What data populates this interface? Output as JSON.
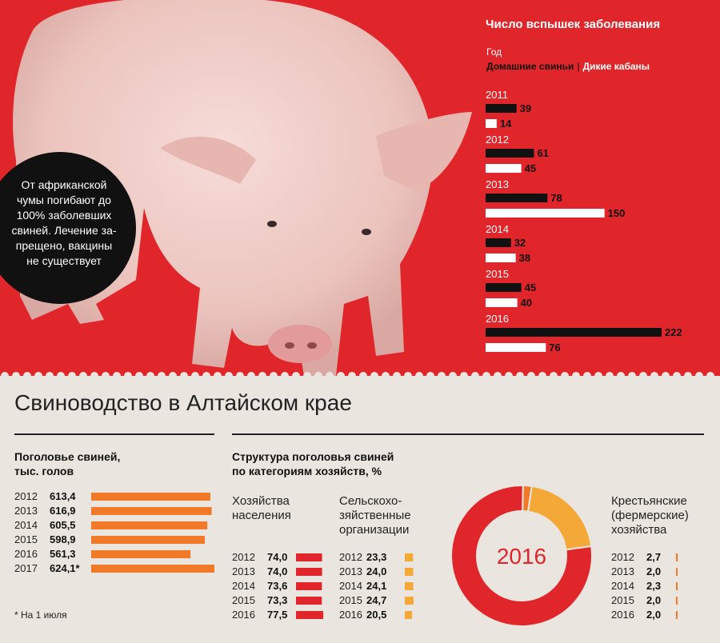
{
  "colors": {
    "red": "#e0262b",
    "black": "#111111",
    "white": "#ffffff",
    "orange": "#f07a28",
    "light_orange": "#f4a838",
    "cream": "#eae6df"
  },
  "callout": {
    "text": "От африканской\nчумы погибают до\n100% заболевших\nсвиней. Лечение за-\nпрещено, вакцины\nне существует"
  },
  "outbreaks": {
    "title": "Число вспышек заболевания",
    "year_label": "Год",
    "legend_domestic": "Домашние свиньи",
    "legend_separator": "|",
    "legend_wild": "Дикие кабаны"
  },
  "main_title": "Свиноводство в Алтайском крае",
  "herd": {
    "title": "Поголовье свиней,\nтыс. голов",
    "note": "* На 1 июля"
  },
  "structure": {
    "title": "Структура поголовья свиней\nпо категориям хозяйств, %",
    "cat1_label": "Хозяйства\nнаселения",
    "cat2_label": "Сельскохо-\nзяйственные\nорганизации",
    "cat3_label": "Крестьянские\n(фермерские)\nхозяйства",
    "donut_label": "2016"
  },
  "chart_data": [
    {
      "id": "outbreaks",
      "type": "bar",
      "title": "Число вспышек заболевания",
      "categories": [
        "2011",
        "2012",
        "2013",
        "2014",
        "2015",
        "2016"
      ],
      "series": [
        {
          "name": "Домашние свиньи",
          "color": "#111111",
          "values": [
            39,
            61,
            78,
            32,
            45,
            222
          ]
        },
        {
          "name": "Дикие кабаны",
          "color": "#ffffff",
          "values": [
            14,
            45,
            150,
            38,
            40,
            76
          ]
        }
      ]
    },
    {
      "id": "herd",
      "type": "bar",
      "title": "Поголовье свиней, тыс. голов",
      "categories": [
        "2012",
        "2013",
        "2014",
        "2015",
        "2016",
        "2017"
      ],
      "values": [
        613.4,
        616.9,
        605.5,
        598.9,
        561.3,
        624.1
      ],
      "value_labels": [
        "613,4",
        "616,9",
        "605,5",
        "598,9",
        "561,3",
        "624,1*"
      ],
      "color": "#f07a28"
    },
    {
      "id": "structure_households",
      "type": "bar",
      "title": "Хозяйства населения",
      "categories": [
        "2012",
        "2013",
        "2014",
        "2015",
        "2016"
      ],
      "values": [
        74.0,
        74.0,
        73.6,
        73.3,
        77.5
      ],
      "value_labels": [
        "74,0",
        "74,0",
        "73,6",
        "73,3",
        "77,5"
      ],
      "color": "#e0262b"
    },
    {
      "id": "structure_agri",
      "type": "bar",
      "title": "Сельскохозяйственные организации",
      "categories": [
        "2012",
        "2013",
        "2014",
        "2015",
        "2016"
      ],
      "values": [
        23.3,
        24.0,
        24.1,
        24.7,
        20.5
      ],
      "value_labels": [
        "23,3",
        "24,0",
        "24,1",
        "24,7",
        "20,5"
      ],
      "color": "#f4a838"
    },
    {
      "id": "structure_farms",
      "type": "bar",
      "title": "Крестьянские (фермерские) хозяйства",
      "categories": [
        "2012",
        "2013",
        "2014",
        "2015",
        "2016"
      ],
      "values": [
        2.7,
        2.0,
        2.3,
        2.0,
        2.0
      ],
      "value_labels": [
        "2,7",
        "2,0",
        "2,3",
        "2,0",
        "2,0"
      ],
      "color": "#f07a28"
    },
    {
      "id": "structure_2016",
      "type": "pie",
      "title": "2016",
      "categories": [
        "Хозяйства населения",
        "Сельскохозяйственные организации",
        "Крестьянские (фермерские) хозяйства"
      ],
      "values": [
        77.5,
        20.5,
        2.0
      ],
      "colors": [
        "#e0262b",
        "#f4a838",
        "#f07a28"
      ]
    }
  ]
}
